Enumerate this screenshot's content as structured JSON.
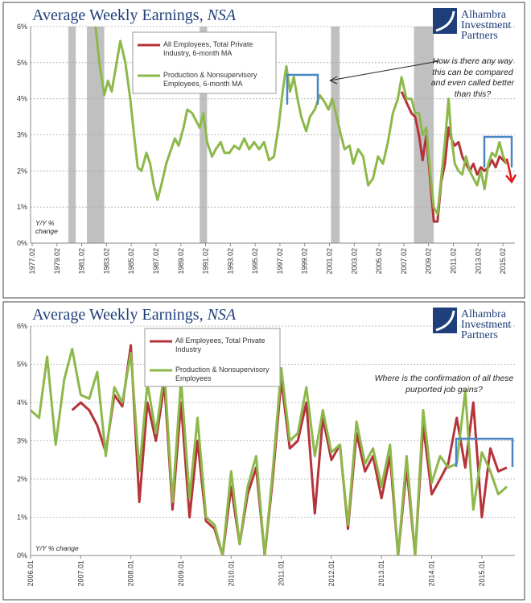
{
  "chart_data": [
    {
      "type": "line",
      "title": "Average Weekly Earnings,",
      "title_italic": "NSA",
      "logo": [
        "Alhambra",
        "Investment",
        "Partners"
      ],
      "y_label": "Y/Y % change",
      "annotation": "How is there any way this can be compared and even called better than this?",
      "xlim": [
        1976.95,
        2016.05
      ],
      "xticks": [
        {
          "value": 1977.08,
          "label": "1977.02"
        },
        {
          "value": 1979.08,
          "label": "1979.02"
        },
        {
          "value": 1981.08,
          "label": "1981.02"
        },
        {
          "value": 1983.08,
          "label": "1983.02"
        },
        {
          "value": 1985.08,
          "label": "1985.02"
        },
        {
          "value": 1987.08,
          "label": "1987.02"
        },
        {
          "value": 1989.08,
          "label": "1989.02"
        },
        {
          "value": 1991.08,
          "label": "1991.02"
        },
        {
          "value": 1993.08,
          "label": "1993.02"
        },
        {
          "value": 1995.08,
          "label": "1995.02"
        },
        {
          "value": 1997.08,
          "label": "1997.02"
        },
        {
          "value": 1999.08,
          "label": "1999.02"
        },
        {
          "value": 2001.08,
          "label": "2001.02"
        },
        {
          "value": 2003.08,
          "label": "2003.02"
        },
        {
          "value": 2005.08,
          "label": "2005.02"
        },
        {
          "value": 2007.08,
          "label": "2007.02"
        },
        {
          "value": 2009.08,
          "label": "2009.02"
        },
        {
          "value": 2011.08,
          "label": "2011.02"
        },
        {
          "value": 2013.08,
          "label": "2013.02"
        },
        {
          "value": 2015.08,
          "label": "2015.02"
        }
      ],
      "ylim": [
        0,
        6
      ],
      "yticks": [
        {
          "value": 0,
          "label": "0%"
        },
        {
          "value": 1,
          "label": "1%"
        },
        {
          "value": 2,
          "label": "2%"
        },
        {
          "value": 3,
          "label": "3%"
        },
        {
          "value": 4,
          "label": "4%"
        },
        {
          "value": 5,
          "label": "5%"
        },
        {
          "value": 6,
          "label": "6%"
        }
      ],
      "grid": true,
      "shaded_periods": [
        [
          1980.0,
          1980.6
        ],
        [
          1981.5,
          1982.9
        ],
        [
          1990.6,
          1991.2
        ],
        [
          2001.2,
          2001.9
        ],
        [
          2007.9,
          2009.5
        ]
      ],
      "shade_color": "#c0c0c0",
      "x": [
        1982.2,
        1982.5,
        1982.9,
        1983.2,
        1983.5,
        1983.9,
        1984.2,
        1984.6,
        1985.0,
        1985.3,
        1985.6,
        1985.9,
        1986.3,
        1986.6,
        1986.9,
        1987.2,
        1987.5,
        1987.9,
        1988.3,
        1988.6,
        1988.9,
        1989.3,
        1989.6,
        1990.0,
        1990.3,
        1990.6,
        1990.9,
        1991.2,
        1991.6,
        1991.9,
        1992.3,
        1992.6,
        1993.0,
        1993.4,
        1993.8,
        1994.2,
        1994.6,
        1995.0,
        1995.4,
        1995.8,
        1996.2,
        1996.6,
        1997.0,
        1997.3,
        1997.6,
        1997.9,
        1998.2,
        1998.5,
        1998.8,
        1999.2,
        1999.5,
        1999.9,
        2000.3,
        2000.7,
        2001.0,
        2001.3,
        2001.6,
        2002.0,
        2002.3,
        2002.7,
        2003.0,
        2003.4,
        2003.8,
        2004.2,
        2004.6,
        2005.0,
        2005.4,
        2005.8,
        2006.2,
        2006.6,
        2006.9,
        2007.3,
        2007.7,
        2008.0,
        2008.3,
        2008.6,
        2008.9,
        2009.2,
        2009.5,
        2009.8,
        2010.1,
        2010.4,
        2010.7,
        2010.9,
        2011.2,
        2011.5,
        2011.8,
        2012.1,
        2012.4,
        2012.7,
        2013.0,
        2013.3,
        2013.6,
        2013.9,
        2014.2,
        2014.5,
        2014.8,
        2015.1,
        2015.4
      ],
      "series": [
        {
          "name": "All Employees, Total Private Industry, 6-month MA",
          "color": "#b5333a",
          "values": [
            null,
            null,
            null,
            null,
            null,
            null,
            null,
            null,
            null,
            null,
            null,
            null,
            null,
            null,
            null,
            null,
            null,
            null,
            null,
            null,
            null,
            null,
            null,
            null,
            null,
            null,
            null,
            null,
            null,
            null,
            null,
            null,
            null,
            null,
            null,
            null,
            null,
            null,
            null,
            null,
            null,
            null,
            null,
            null,
            null,
            null,
            null,
            null,
            null,
            null,
            null,
            null,
            null,
            null,
            null,
            null,
            null,
            null,
            null,
            null,
            null,
            null,
            null,
            null,
            null,
            null,
            null,
            null,
            null,
            null,
            4.2,
            3.9,
            3.6,
            3.5,
            3.0,
            2.3,
            3.0,
            1.8,
            0.6,
            0.6,
            1.7,
            2.2,
            3.2,
            2.9,
            2.7,
            2.8,
            2.4,
            2.2,
            2.0,
            2.2,
            1.9,
            2.1,
            2.0,
            2.1,
            2.3,
            2.1,
            2.4,
            2.3,
            2.2
          ]
        },
        {
          "name": "Production & Nonsupervisory Employees, 6-month MA",
          "color": "#8db84a",
          "values": [
            6.0,
            5.0,
            4.1,
            4.5,
            4.2,
            5.0,
            5.6,
            5.0,
            4.0,
            3.0,
            2.1,
            2.0,
            2.5,
            2.2,
            1.6,
            1.2,
            1.6,
            2.2,
            2.6,
            2.9,
            2.7,
            3.2,
            3.7,
            3.6,
            3.4,
            3.2,
            3.6,
            2.8,
            2.4,
            2.6,
            2.8,
            2.5,
            2.5,
            2.7,
            2.6,
            2.9,
            2.6,
            2.8,
            2.6,
            2.8,
            2.3,
            2.4,
            3.3,
            4.2,
            4.9,
            4.2,
            4.6,
            4.0,
            3.5,
            3.1,
            3.5,
            3.7,
            4.1,
            3.9,
            3.7,
            4.0,
            3.6,
            3.0,
            2.6,
            2.7,
            2.2,
            2.6,
            2.4,
            1.6,
            1.8,
            2.4,
            2.2,
            2.8,
            3.6,
            4.0,
            4.6,
            4.0,
            4.0,
            3.6,
            3.6,
            3.0,
            3.2,
            2.0,
            1.0,
            0.8,
            1.8,
            2.8,
            4.0,
            3.0,
            2.2,
            2.0,
            1.9,
            2.4,
            2.0,
            1.8,
            1.6,
            2.0,
            1.5,
            2.2,
            2.5,
            2.4,
            2.8,
            2.4,
            2.2
          ]
        }
      ]
    },
    {
      "type": "line",
      "title": "Average Weekly Earnings,",
      "title_italic": "NSA",
      "logo": [
        "Alhambra",
        "Investment",
        "Partners"
      ],
      "y_label": "Y/Y % change",
      "annotation": "Where is the confirmation of all these purported job gains?",
      "xlim": [
        2006.0,
        2015.66
      ],
      "xticks": [
        {
          "value": 2006.0,
          "label": "2006.01"
        },
        {
          "value": 2007.0,
          "label": "2007.01"
        },
        {
          "value": 2008.0,
          "label": "2008.01"
        },
        {
          "value": 2009.0,
          "label": "2009.01"
        },
        {
          "value": 2010.0,
          "label": "2010.01"
        },
        {
          "value": 2011.0,
          "label": "2011.01"
        },
        {
          "value": 2012.0,
          "label": "2012.01"
        },
        {
          "value": 2013.0,
          "label": "2013.01"
        },
        {
          "value": 2014.0,
          "label": "2014.01"
        },
        {
          "value": 2015.0,
          "label": "2015.01"
        }
      ],
      "ylim": [
        0,
        6
      ],
      "yticks": [
        {
          "value": 0,
          "label": "0%"
        },
        {
          "value": 1,
          "label": "1%"
        },
        {
          "value": 2,
          "label": "2%"
        },
        {
          "value": 3,
          "label": "3%"
        },
        {
          "value": 4,
          "label": "4%"
        },
        {
          "value": 5,
          "label": "5%"
        },
        {
          "value": 6,
          "label": "6%"
        }
      ],
      "grid": true,
      "x": [
        2006.0,
        2006.17,
        2006.33,
        2006.5,
        2006.67,
        2006.83,
        2007.0,
        2007.17,
        2007.33,
        2007.5,
        2007.67,
        2007.83,
        2008.0,
        2008.17,
        2008.33,
        2008.5,
        2008.67,
        2008.83,
        2009.0,
        2009.17,
        2009.33,
        2009.5,
        2009.67,
        2009.83,
        2010.0,
        2010.17,
        2010.33,
        2010.5,
        2010.67,
        2010.83,
        2011.0,
        2011.17,
        2011.33,
        2011.5,
        2011.67,
        2011.83,
        2012.0,
        2012.17,
        2012.33,
        2012.5,
        2012.67,
        2012.83,
        2013.0,
        2013.17,
        2013.33,
        2013.5,
        2013.67,
        2013.83,
        2014.0,
        2014.17,
        2014.33,
        2014.5,
        2014.67,
        2014.83,
        2015.0,
        2015.17,
        2015.33,
        2015.5
      ],
      "series": [
        {
          "name": "All Employees, Total Private Industry",
          "color": "#b5333a",
          "values": [
            null,
            null,
            null,
            null,
            null,
            3.8,
            4.0,
            3.8,
            3.4,
            2.7,
            4.2,
            3.9,
            5.5,
            1.4,
            4.0,
            3.0,
            4.5,
            1.2,
            4.0,
            1.0,
            3.0,
            0.9,
            0.7,
            0.0,
            1.8,
            0.3,
            1.6,
            2.3,
            0.0,
            2.0,
            4.6,
            2.8,
            3.0,
            4.0,
            1.1,
            3.6,
            2.5,
            2.9,
            0.7,
            3.2,
            2.2,
            2.6,
            1.5,
            2.6,
            0.0,
            2.3,
            0.0,
            3.4,
            1.6,
            2.0,
            2.4,
            3.6,
            2.3,
            4.0,
            1.0,
            2.8,
            2.2,
            2.3
          ]
        },
        {
          "name": "Production & Nonsupervisory Employees",
          "color": "#8db84a",
          "values": [
            3.8,
            3.6,
            5.2,
            2.9,
            4.6,
            5.4,
            4.2,
            4.1,
            4.8,
            2.6,
            4.4,
            4.0,
            5.3,
            2.2,
            4.5,
            3.2,
            4.8,
            1.4,
            4.6,
            1.5,
            3.6,
            1.0,
            0.8,
            0.0,
            2.2,
            0.3,
            1.8,
            2.6,
            0.0,
            2.2,
            4.9,
            3.0,
            3.2,
            4.4,
            2.6,
            3.8,
            2.7,
            2.9,
            0.8,
            3.5,
            2.4,
            2.8,
            1.8,
            2.9,
            0.0,
            2.6,
            0.0,
            3.8,
            1.9,
            2.6,
            2.3,
            2.4,
            4.3,
            1.2,
            2.7,
            2.2,
            1.6,
            1.8
          ]
        }
      ]
    }
  ]
}
